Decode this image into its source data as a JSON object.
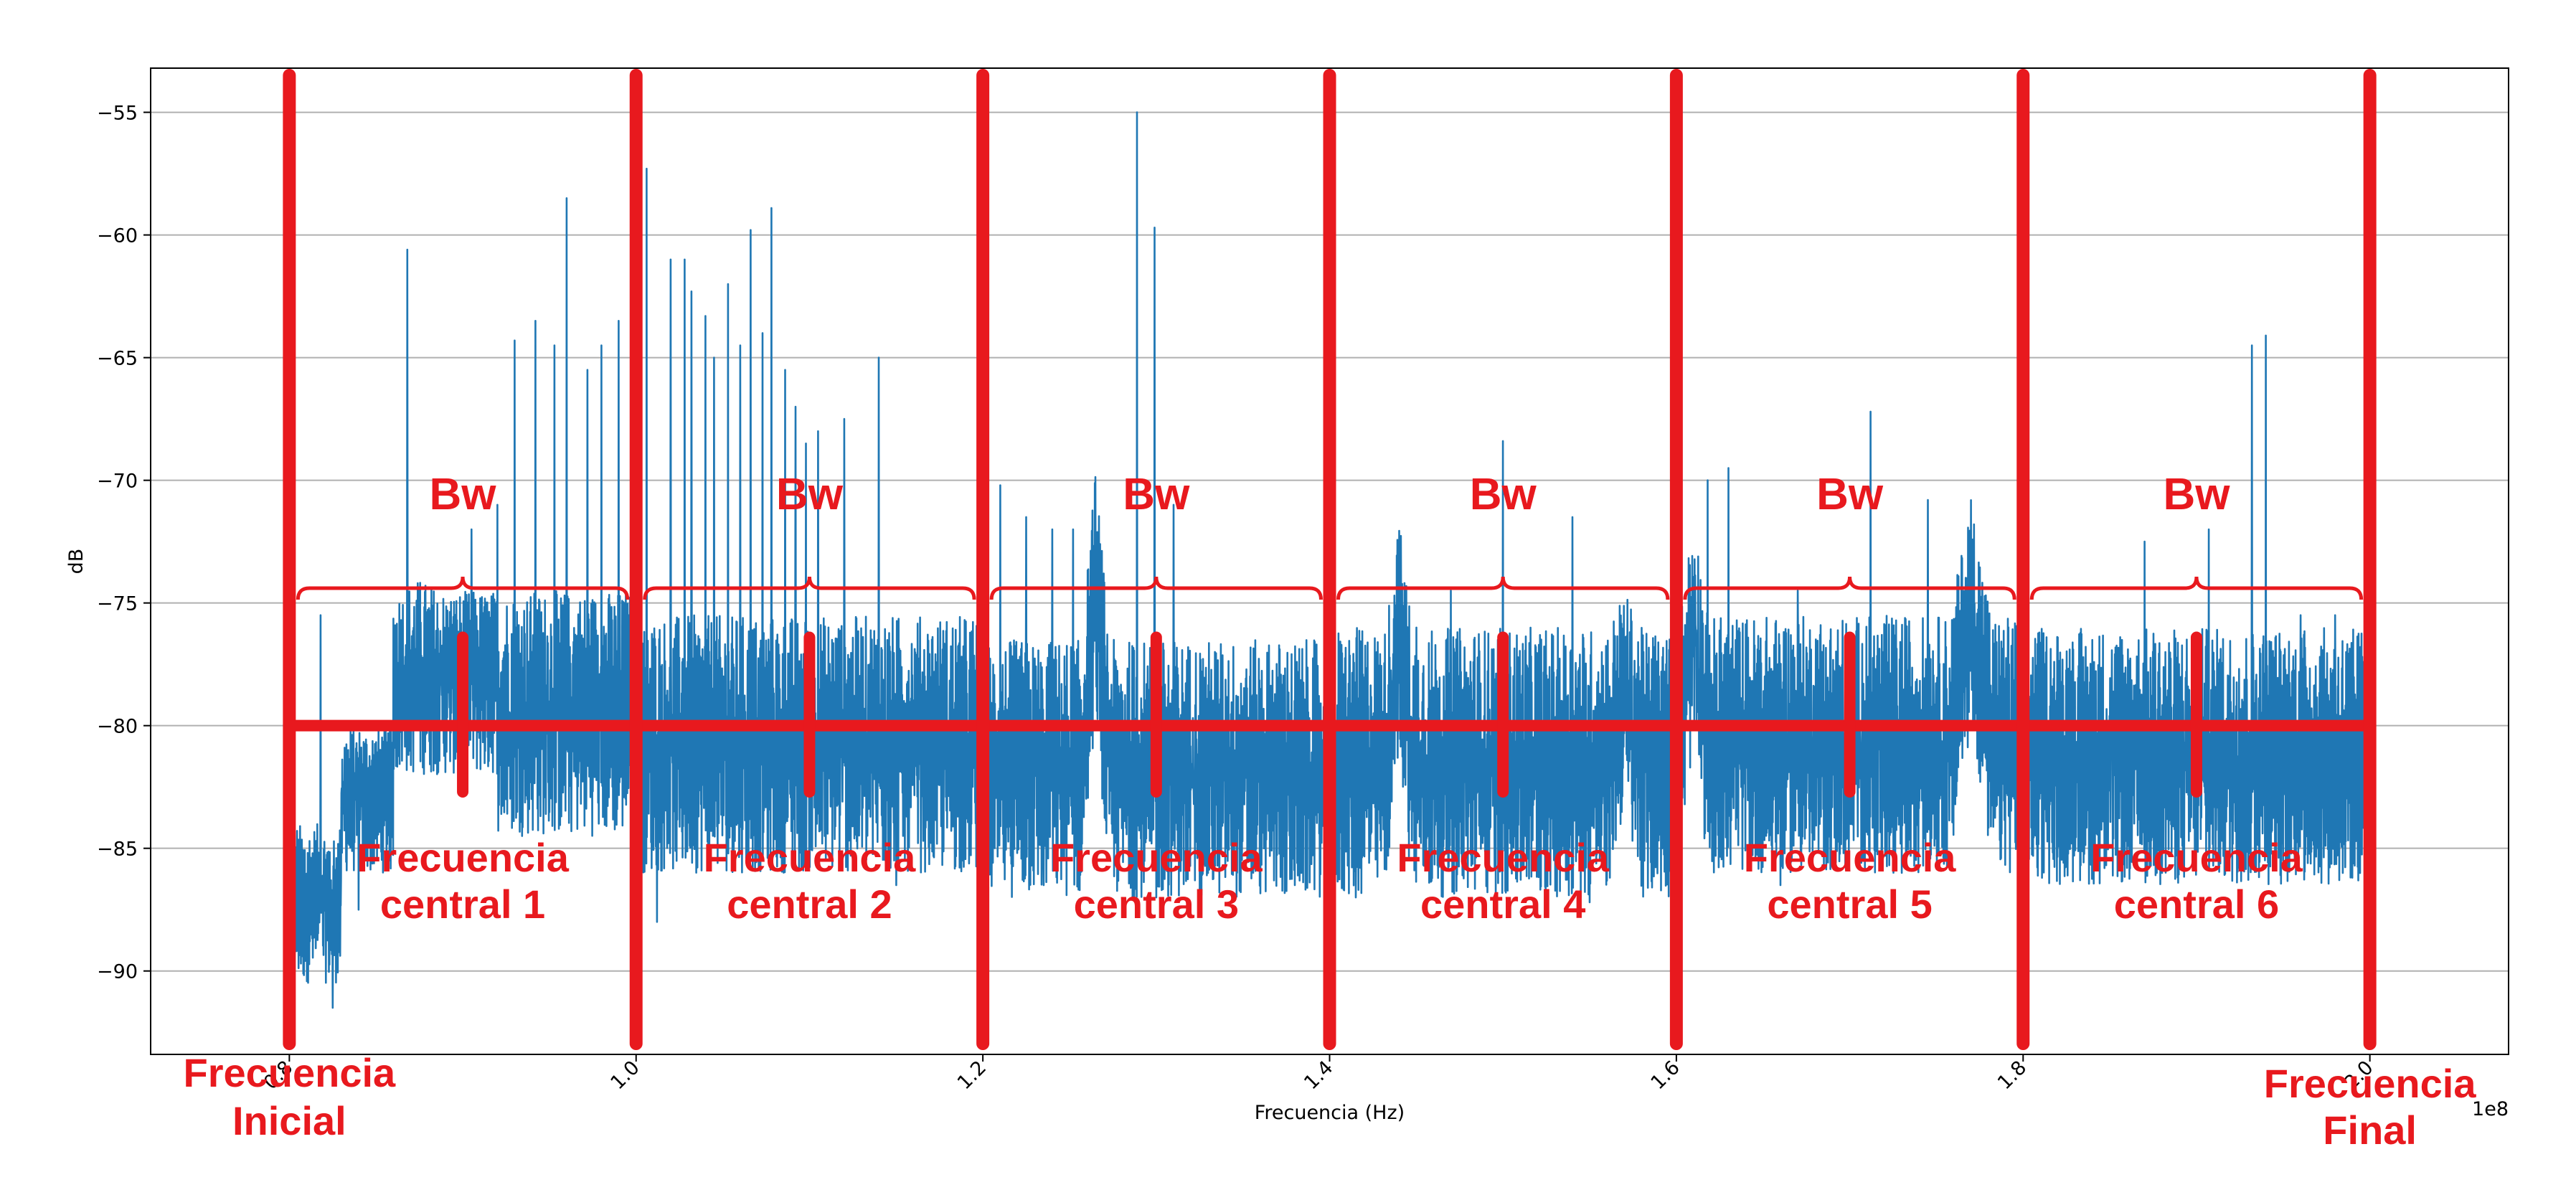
{
  "chart_data": {
    "type": "line",
    "title": "",
    "xlabel": "Frecuencia (Hz)",
    "ylabel": "dB",
    "x_offset_label": "1e8",
    "xlim": [
      0.72,
      2.08
    ],
    "ylim": [
      -93.4,
      -53.2
    ],
    "x_ticks": [
      0.8,
      1.0,
      1.2,
      1.4,
      1.6,
      1.8,
      2.0
    ],
    "x_tick_labels": [
      "0.8",
      "1.0",
      "1.2",
      "1.4",
      "1.6",
      "1.8",
      "2.0"
    ],
    "y_ticks": [
      -55,
      -60,
      -65,
      -70,
      -75,
      -80,
      -85,
      -90
    ],
    "y_tick_labels": [
      "−55",
      "−60",
      "−65",
      "−70",
      "−75",
      "−80",
      "−85",
      "−90"
    ],
    "grid": "horizontal",
    "series": [
      {
        "color": "#1f77b4",
        "noise_floor_segments": [
          {
            "x": [
              0.8,
              0.83
            ],
            "y_low": -90.5,
            "y_high": -84.0
          },
          {
            "x": [
              0.83,
              0.86
            ],
            "y_low": -86.0,
            "y_high": -80.0
          },
          {
            "x": [
              0.86,
              0.92
            ],
            "y_low": -82.0,
            "y_high": -74.5
          },
          {
            "x": [
              0.92,
              1.0
            ],
            "y_low": -84.5,
            "y_high": -74.5
          },
          {
            "x": [
              1.0,
              1.2
            ],
            "y_low": -86.0,
            "y_high": -75.5
          },
          {
            "x": [
              1.2,
              1.4
            ],
            "y_low": -87.0,
            "y_high": -76.5
          },
          {
            "x": [
              1.4,
              1.6
            ],
            "y_low": -87.0,
            "y_high": -76.0
          },
          {
            "x": [
              1.6,
              1.8
            ],
            "y_low": -86.0,
            "y_high": -75.5
          },
          {
            "x": [
              1.8,
              2.0
            ],
            "y_low": -86.5,
            "y_high": -76.0
          }
        ],
        "bumps": [
          {
            "center": 0.875,
            "width": 0.015,
            "top": -74.0
          },
          {
            "center": 1.265,
            "width": 0.008,
            "top": -69.5
          },
          {
            "center": 1.44,
            "width": 0.008,
            "top": -71.5
          },
          {
            "center": 1.57,
            "width": 0.01,
            "top": -74.5
          },
          {
            "center": 1.61,
            "width": 0.008,
            "top": -71.0
          },
          {
            "center": 1.77,
            "width": 0.012,
            "top": -70.5
          }
        ],
        "spikes": [
          {
            "x": 0.818,
            "y": -75.5
          },
          {
            "x": 0.868,
            "y": -60.6
          },
          {
            "x": 0.905,
            "y": -72.0
          },
          {
            "x": 0.92,
            "y": -71.0
          },
          {
            "x": 0.93,
            "y": -64.3
          },
          {
            "x": 0.942,
            "y": -63.5
          },
          {
            "x": 0.953,
            "y": -64.5
          },
          {
            "x": 0.96,
            "y": -58.5
          },
          {
            "x": 0.972,
            "y": -65.5
          },
          {
            "x": 0.98,
            "y": -64.5
          },
          {
            "x": 0.99,
            "y": -63.5
          },
          {
            "x": 1.002,
            "y": -54.2
          },
          {
            "x": 1.006,
            "y": -57.3
          },
          {
            "x": 1.02,
            "y": -61.0
          },
          {
            "x": 1.028,
            "y": -61.0
          },
          {
            "x": 1.032,
            "y": -62.3
          },
          {
            "x": 1.04,
            "y": -63.3
          },
          {
            "x": 1.045,
            "y": -65.0
          },
          {
            "x": 1.053,
            "y": -62.0
          },
          {
            "x": 1.06,
            "y": -64.5
          },
          {
            "x": 1.066,
            "y": -59.8
          },
          {
            "x": 1.073,
            "y": -64.0
          },
          {
            "x": 1.078,
            "y": -58.9
          },
          {
            "x": 1.086,
            "y": -65.5
          },
          {
            "x": 1.092,
            "y": -67.0
          },
          {
            "x": 1.098,
            "y": -68.5
          },
          {
            "x": 1.105,
            "y": -68.0
          },
          {
            "x": 1.12,
            "y": -67.5
          },
          {
            "x": 1.14,
            "y": -65.0
          },
          {
            "x": 1.21,
            "y": -70.2
          },
          {
            "x": 1.225,
            "y": -71.5
          },
          {
            "x": 1.24,
            "y": -72.0
          },
          {
            "x": 1.252,
            "y": -72.0
          },
          {
            "x": 1.289,
            "y": -55.0
          },
          {
            "x": 1.299,
            "y": -59.7
          },
          {
            "x": 1.31,
            "y": -71.0
          },
          {
            "x": 1.45,
            "y": -76.0
          },
          {
            "x": 1.47,
            "y": -74.5
          },
          {
            "x": 1.5,
            "y": -68.4
          },
          {
            "x": 1.54,
            "y": -71.5
          },
          {
            "x": 1.6,
            "y": -64.0
          },
          {
            "x": 1.618,
            "y": -70.0
          },
          {
            "x": 1.63,
            "y": -69.5
          },
          {
            "x": 1.67,
            "y": -74.5
          },
          {
            "x": 1.712,
            "y": -67.2
          },
          {
            "x": 1.745,
            "y": -70.8
          },
          {
            "x": 1.87,
            "y": -72.5
          },
          {
            "x": 1.907,
            "y": -72.0
          },
          {
            "x": 1.932,
            "y": -64.5
          },
          {
            "x": 1.94,
            "y": -64.1
          },
          {
            "x": 1.96,
            "y": -75.5
          },
          {
            "x": 1.98,
            "y": -75.5
          }
        ],
        "dips": [
          {
            "x": 0.825,
            "y": -91.5
          },
          {
            "x": 0.84,
            "y": -87.5
          },
          {
            "x": 1.012,
            "y": -88.0
          },
          {
            "x": 1.15,
            "y": -86.5
          },
          {
            "x": 1.235,
            "y": -86.5
          },
          {
            "x": 1.3,
            "y": -87.0
          },
          {
            "x": 1.38,
            "y": -86.5
          },
          {
            "x": 1.415,
            "y": -87.0
          },
          {
            "x": 1.55,
            "y": -87.2
          },
          {
            "x": 1.66,
            "y": -86.5
          },
          {
            "x": 1.73,
            "y": -86.0
          },
          {
            "x": 1.86,
            "y": -85.8
          },
          {
            "x": 1.95,
            "y": -85.5
          }
        ]
      }
    ],
    "annotations": {
      "color": "#e8191e",
      "baseline_y": -80,
      "boundaries": [
        0.8,
        1.0,
        1.2,
        1.4,
        1.6,
        1.8,
        2.0
      ],
      "bandwidth_label": "Bw",
      "bands": [
        {
          "center": 0.9,
          "label_line1": "Frecuencia",
          "label_line2": "central 1"
        },
        {
          "center": 1.1,
          "label_line1": "Frecuencia",
          "label_line2": "central 2"
        },
        {
          "center": 1.3,
          "label_line1": "Frecuencia",
          "label_line2": "central 3"
        },
        {
          "center": 1.5,
          "label_line1": "Frecuencia",
          "label_line2": "central 4"
        },
        {
          "center": 1.7,
          "label_line1": "Frecuencia",
          "label_line2": "central 5"
        },
        {
          "center": 1.9,
          "label_line1": "Frecuencia",
          "label_line2": "central 6"
        }
      ],
      "start_label_line1": "Frecuencia",
      "start_label_line2": "Inicial",
      "end_label_line1": "Frecuencia",
      "end_label_line2": "Final"
    }
  }
}
